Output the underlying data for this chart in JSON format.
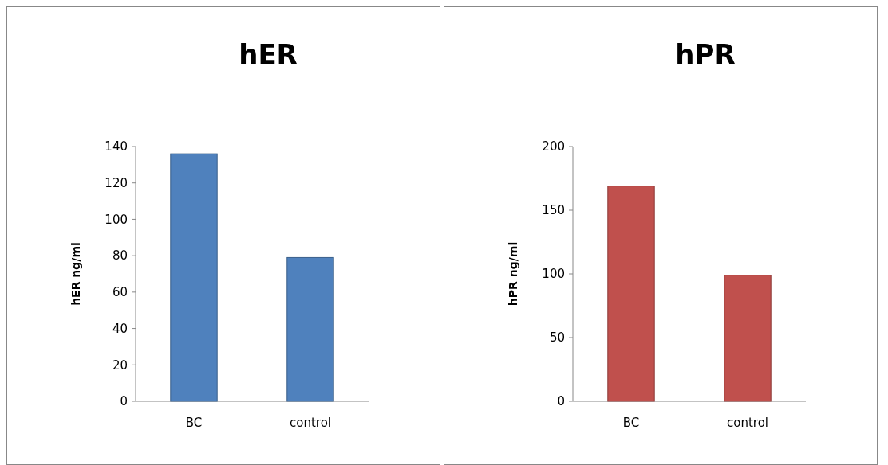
{
  "chart_data": [
    {
      "type": "bar",
      "title": "hER",
      "ylabel": "hER ng/ml",
      "categories": [
        "BC",
        "control"
      ],
      "values": [
        136,
        79
      ],
      "color": "#4f81bd",
      "ylim": [
        0,
        140
      ],
      "yticks": [
        0,
        20,
        40,
        60,
        80,
        100,
        120,
        140
      ]
    },
    {
      "type": "bar",
      "title": "hPR",
      "ylabel": "hPR ng/ml",
      "categories": [
        "BC",
        "control"
      ],
      "values": [
        169,
        99
      ],
      "color": "#c0504d",
      "ylim": [
        0,
        200
      ],
      "yticks": [
        0,
        50,
        100,
        150,
        200
      ]
    }
  ]
}
